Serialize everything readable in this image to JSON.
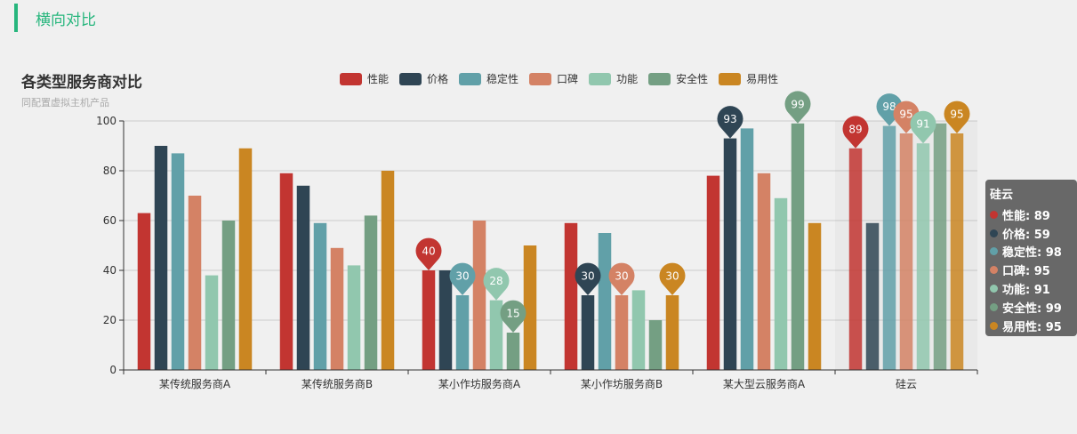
{
  "section": {
    "title": "横向对比"
  },
  "colors": {
    "accent": "#27b67d",
    "series": [
      "#c23531",
      "#2f4554",
      "#61a0a8",
      "#d48265",
      "#91c7ae",
      "#749f83",
      "#ca8622"
    ]
  },
  "chart_data": {
    "type": "bar",
    "title": "各类型服务商对比",
    "subtitle": "同配置虚拟主机产品",
    "categories": [
      "某传统服务商A",
      "某传统服务商B",
      "某小作坊服务商A",
      "某小作坊服务商B",
      "某大型云服务商A",
      "硅云"
    ],
    "ylim": [
      0,
      100
    ],
    "yticks": [
      0,
      20,
      40,
      60,
      80,
      100
    ],
    "grid": true,
    "legend_position": "top-center",
    "series": [
      {
        "name": "性能",
        "values": [
          63,
          79,
          40,
          59,
          78,
          89
        ]
      },
      {
        "name": "价格",
        "values": [
          90,
          74,
          40,
          30,
          93,
          59
        ]
      },
      {
        "name": "稳定性",
        "values": [
          87,
          59,
          30,
          55,
          97,
          98
        ]
      },
      {
        "name": "口碑",
        "values": [
          70,
          49,
          60,
          30,
          79,
          95
        ]
      },
      {
        "name": "功能",
        "values": [
          38,
          42,
          28,
          32,
          69,
          91
        ]
      },
      {
        "name": "安全性",
        "values": [
          60,
          62,
          15,
          20,
          99,
          99
        ]
      },
      {
        "name": "易用性",
        "values": [
          89,
          80,
          50,
          30,
          59,
          95
        ]
      }
    ],
    "mark_points": [
      {
        "series": 0,
        "category": 2,
        "value": 40
      },
      {
        "series": 2,
        "category": 2,
        "value": 30
      },
      {
        "series": 4,
        "category": 2,
        "value": 28
      },
      {
        "series": 5,
        "category": 2,
        "value": 15
      },
      {
        "series": 1,
        "category": 3,
        "value": 30
      },
      {
        "series": 3,
        "category": 3,
        "value": 30
      },
      {
        "series": 6,
        "category": 3,
        "value": 30
      },
      {
        "series": 1,
        "category": 4,
        "value": 93
      },
      {
        "series": 5,
        "category": 4,
        "value": 99
      },
      {
        "series": 0,
        "category": 5,
        "value": 89
      },
      {
        "series": 2,
        "category": 5,
        "value": 98
      },
      {
        "series": 3,
        "category": 5,
        "value": 95
      },
      {
        "series": 4,
        "category": 5,
        "value": 91
      },
      {
        "series": 6,
        "category": 5,
        "value": 95
      }
    ],
    "highlight_category": 5
  },
  "tooltip": {
    "title": "硅云",
    "rows": [
      {
        "label": "性能: 89"
      },
      {
        "label": "价格: 59"
      },
      {
        "label": "稳定性: 98"
      },
      {
        "label": "口碑: 95"
      },
      {
        "label": "功能: 91"
      },
      {
        "label": "安全性: 99"
      },
      {
        "label": "易用性: 95"
      }
    ]
  }
}
